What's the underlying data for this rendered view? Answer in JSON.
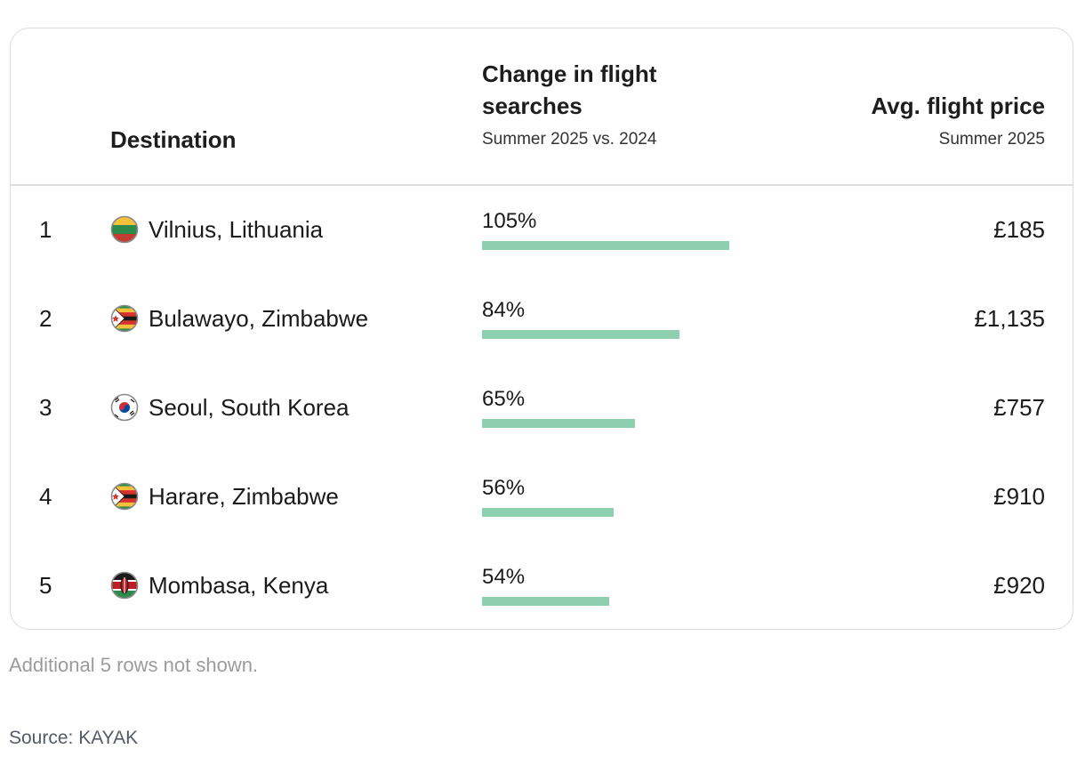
{
  "chart_data": {
    "type": "table",
    "columns": {
      "destination": "Destination",
      "change_title": "Change in flight searches",
      "change_sub": "Summer 2025 vs. 2024",
      "price_title": "Avg. flight price",
      "price_sub": "Summer 2025"
    },
    "max_pct": 105,
    "rows": [
      {
        "rank": "1",
        "destination": "Vilnius, Lithuania",
        "flag": "lithuania-flag-icon",
        "change": 105,
        "change_label": "105%",
        "price": "£185"
      },
      {
        "rank": "2",
        "destination": "Bulawayo, Zimbabwe",
        "flag": "zimbabwe-flag-icon",
        "change": 84,
        "change_label": "84%",
        "price": "£1,135"
      },
      {
        "rank": "3",
        "destination": "Seoul, South Korea",
        "flag": "south-korea-flag-icon",
        "change": 65,
        "change_label": "65%",
        "price": "£757"
      },
      {
        "rank": "4",
        "destination": "Harare, Zimbabwe",
        "flag": "zimbabwe-flag-icon",
        "change": 56,
        "change_label": "56%",
        "price": "£910"
      },
      {
        "rank": "5",
        "destination": "Mombasa, Kenya",
        "flag": "kenya-flag-icon",
        "change": 54,
        "change_label": "54%",
        "price": "£920"
      }
    ],
    "bar_color": "#8ecfb0"
  },
  "footer": {
    "note": "Additional 5 rows not shown.",
    "source": "Source: KAYAK"
  }
}
